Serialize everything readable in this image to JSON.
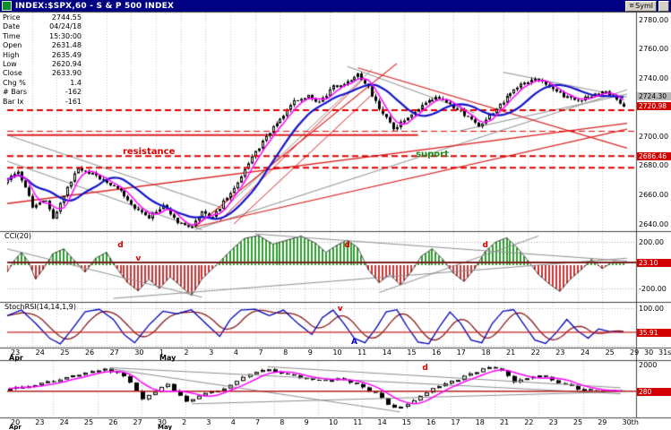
{
  "colors": {
    "titlebar_bg": "#000082",
    "up_candle": "#ffffff",
    "down_candle": "#000000",
    "ma_fast": "#ff00ff",
    "ma_slow": "#1414cc",
    "trend_gray": "#909090",
    "trend_red": "#dd2222",
    "dashed_red": "#e00000",
    "cci_pos": "#2f9e2f",
    "cci_neg": "#cc3333",
    "level_maroon": "#7b1f1f",
    "stoch_k": "#0000bb",
    "stoch_d": "#8b1a1a",
    "grid": "#c9c9c9",
    "badge_red": "#d40000",
    "badge_gray": "#b9b9b9",
    "resistance": "#dd0000",
    "support": "#1a8a1a"
  },
  "title_bar": {
    "title": "INDEX:$SPX,60 - S & P 500 INDEX",
    "symbol_button": "Syml"
  },
  "info_panel": {
    "rows": [
      [
        "Price",
        "2744.55"
      ],
      [
        "Date",
        "04/24/18"
      ],
      [
        "Time",
        "15:30:00"
      ],
      [
        "Open",
        "2631.48"
      ],
      [
        "High",
        "2635.49"
      ],
      [
        "Low",
        "2620.94"
      ],
      [
        "Close",
        "2633.90"
      ],
      [
        "Chg %",
        "1.4"
      ],
      [
        "# Bars",
        "-162"
      ],
      [
        "Bar Ix",
        "-161"
      ]
    ]
  },
  "chart_data": {
    "type": "candlestick",
    "title": "INDEX:$SPX,60 - S & P 500 INDEX",
    "main": {
      "bars": 175,
      "y_tick_labels": [
        "2780.00",
        "2760.00",
        "2740.00",
        "2720.00",
        "2700.00",
        "2680.00",
        "2660.00",
        "2640.00"
      ],
      "y_tick_values": [
        2780,
        2760,
        2740,
        2720,
        2700,
        2680,
        2660,
        2640
      ],
      "ylim": [
        2634,
        2784
      ],
      "price_anchors": [
        [
          0,
          2668
        ],
        [
          4,
          2676
        ],
        [
          8,
          2652
        ],
        [
          12,
          2656
        ],
        [
          14,
          2643
        ],
        [
          17,
          2660
        ],
        [
          21,
          2678
        ],
        [
          25,
          2674
        ],
        [
          29,
          2668
        ],
        [
          33,
          2662
        ],
        [
          37,
          2650
        ],
        [
          41,
          2645
        ],
        [
          45,
          2653
        ],
        [
          49,
          2641
        ],
        [
          53,
          2638
        ],
        [
          56,
          2648
        ],
        [
          59,
          2644
        ],
        [
          62,
          2655
        ],
        [
          66,
          2668
        ],
        [
          70,
          2686
        ],
        [
          74,
          2700
        ],
        [
          78,
          2712
        ],
        [
          82,
          2724
        ],
        [
          86,
          2728
        ],
        [
          89,
          2723
        ],
        [
          93,
          2734
        ],
        [
          97,
          2737
        ],
        [
          100,
          2742
        ],
        [
          103,
          2734
        ],
        [
          106,
          2718
        ],
        [
          110,
          2706
        ],
        [
          114,
          2712
        ],
        [
          118,
          2722
        ],
        [
          122,
          2727
        ],
        [
          126,
          2722
        ],
        [
          130,
          2715
        ],
        [
          134,
          2708
        ],
        [
          138,
          2716
        ],
        [
          142,
          2727
        ],
        [
          146,
          2736
        ],
        [
          150,
          2740
        ],
        [
          154,
          2734
        ],
        [
          158,
          2728
        ],
        [
          162,
          2724
        ],
        [
          166,
          2728
        ],
        [
          170,
          2731
        ],
        [
          173,
          2724
        ],
        [
          175,
          2721
        ]
      ],
      "trendlines_gray": [
        [
          0,
          2701,
          62,
          2650
        ],
        [
          0,
          2683,
          55,
          2636
        ],
        [
          53,
          2636,
          175,
          2732
        ],
        [
          62,
          2652,
          103,
          2746
        ],
        [
          96,
          2748,
          132,
          2716
        ],
        [
          128,
          2704,
          175,
          2729
        ],
        [
          140,
          2744,
          175,
          2727
        ]
      ],
      "trendlines_red": [
        [
          53,
          2638,
          110,
          2750,
          1.2
        ],
        [
          53,
          2638,
          175,
          2705,
          1.2
        ],
        [
          60,
          2642,
          100,
          2738,
          1
        ],
        [
          64,
          2640,
          104,
          2731,
          1
        ],
        [
          99,
          2747,
          175,
          2692,
          1.2
        ],
        [
          0,
          2654,
          175,
          2709,
          1.4
        ],
        [
          0,
          2701,
          116,
          2701,
          2
        ]
      ],
      "dashed_levels": [
        [
          2718,
          2
        ],
        [
          2703.5,
          1
        ],
        [
          2686.5,
          2
        ],
        [
          2678.5,
          2
        ]
      ],
      "annotations": [
        {
          "bar": 40,
          "price": 2689,
          "text": "resistance",
          "color": "#dd0000"
        },
        {
          "bar": 120,
          "price": 2687,
          "text": "suport",
          "color": "#1a8a1a"
        }
      ]
    },
    "cci": {
      "label": "CCI(20)",
      "y_tick_labels": [
        "200.00",
        "-200.00"
      ],
      "y_tick_values": [
        200,
        -200
      ],
      "level": 23.1,
      "anchors": [
        [
          0,
          -60
        ],
        [
          2,
          40
        ],
        [
          4,
          110
        ],
        [
          6,
          30
        ],
        [
          8,
          -120
        ],
        [
          10,
          -40
        ],
        [
          13,
          100
        ],
        [
          16,
          140
        ],
        [
          19,
          40
        ],
        [
          22,
          -60
        ],
        [
          25,
          60
        ],
        [
          28,
          110
        ],
        [
          31,
          -30
        ],
        [
          34,
          -150
        ],
        [
          37,
          -220
        ],
        [
          40,
          -120
        ],
        [
          43,
          -200
        ],
        [
          46,
          -100
        ],
        [
          49,
          -180
        ],
        [
          52,
          -260
        ],
        [
          55,
          -120
        ],
        [
          58,
          -30
        ],
        [
          61,
          60
        ],
        [
          64,
          150
        ],
        [
          67,
          230
        ],
        [
          71,
          255
        ],
        [
          75,
          180
        ],
        [
          79,
          215
        ],
        [
          83,
          250
        ],
        [
          87,
          190
        ],
        [
          90,
          110
        ],
        [
          93,
          170
        ],
        [
          96,
          215
        ],
        [
          99,
          150
        ],
        [
          102,
          -40
        ],
        [
          105,
          -150
        ],
        [
          108,
          -80
        ],
        [
          111,
          -170
        ],
        [
          114,
          -60
        ],
        [
          117,
          80
        ],
        [
          120,
          140
        ],
        [
          123,
          50
        ],
        [
          126,
          -70
        ],
        [
          129,
          -140
        ],
        [
          132,
          -30
        ],
        [
          135,
          120
        ],
        [
          138,
          200
        ],
        [
          141,
          235
        ],
        [
          144,
          150
        ],
        [
          147,
          40
        ],
        [
          150,
          -80
        ],
        [
          153,
          -160
        ],
        [
          156,
          -225
        ],
        [
          159,
          -120
        ],
        [
          162,
          -40
        ],
        [
          165,
          50
        ],
        [
          168,
          -30
        ],
        [
          171,
          30
        ],
        [
          175,
          23
        ]
      ],
      "trendlines_gray": [
        [
          0,
          140,
          55,
          -275
        ],
        [
          30,
          -285,
          175,
          60
        ],
        [
          70,
          268,
          175,
          35
        ],
        [
          105,
          -235,
          150,
          250
        ]
      ],
      "annotations": [
        {
          "bar": 32,
          "value": 165,
          "text": "d",
          "color": "#dd0000"
        },
        {
          "bar": 37,
          "value": 45,
          "text": "v",
          "color": "#dd0000"
        },
        {
          "bar": 96,
          "value": 165,
          "text": "d",
          "color": "#dd0000"
        },
        {
          "bar": 135,
          "value": 165,
          "text": "d",
          "color": "#dd0000"
        }
      ]
    },
    "stochrsi": {
      "label": "StochRSI(14,14,1,9)",
      "y_tick_labels": [
        "100.00"
      ],
      "y_tick_values": [
        100
      ],
      "level": 35.91,
      "anchors": [
        [
          0,
          80
        ],
        [
          4,
          95
        ],
        [
          8,
          60
        ],
        [
          12,
          20
        ],
        [
          15,
          5
        ],
        [
          18,
          40
        ],
        [
          22,
          90
        ],
        [
          26,
          97
        ],
        [
          30,
          70
        ],
        [
          33,
          30
        ],
        [
          36,
          8
        ],
        [
          40,
          55
        ],
        [
          44,
          92
        ],
        [
          48,
          85
        ],
        [
          52,
          96
        ],
        [
          56,
          60
        ],
        [
          60,
          25
        ],
        [
          63,
          70
        ],
        [
          66,
          95
        ],
        [
          70,
          97
        ],
        [
          74,
          80
        ],
        [
          78,
          95
        ],
        [
          82,
          60
        ],
        [
          86,
          30
        ],
        [
          89,
          75
        ],
        [
          92,
          95
        ],
        [
          95,
          60
        ],
        [
          98,
          20
        ],
        [
          101,
          8
        ],
        [
          104,
          45
        ],
        [
          107,
          90
        ],
        [
          110,
          96
        ],
        [
          113,
          50
        ],
        [
          116,
          10
        ],
        [
          119,
          5
        ],
        [
          122,
          50
        ],
        [
          125,
          90
        ],
        [
          128,
          60
        ],
        [
          131,
          15
        ],
        [
          134,
          8
        ],
        [
          137,
          60
        ],
        [
          140,
          92
        ],
        [
          143,
          96
        ],
        [
          146,
          55
        ],
        [
          149,
          15
        ],
        [
          152,
          6
        ],
        [
          155,
          35
        ],
        [
          158,
          70
        ],
        [
          161,
          40
        ],
        [
          164,
          20
        ],
        [
          167,
          45
        ],
        [
          170,
          38
        ],
        [
          175,
          36
        ]
      ],
      "annotations": [
        {
          "bar": 94,
          "value": 96,
          "text": "v",
          "color": "#dd0000"
        },
        {
          "bar": 98,
          "value": 8,
          "text": "A",
          "color": "#0000cc"
        }
      ]
    },
    "lower": {
      "bars": 98,
      "y_tick_labels": [
        "2000"
      ],
      "y_tick_values": [
        0.03
      ],
      "level": 0.55,
      "anchors": [
        [
          0,
          0.52
        ],
        [
          4,
          0.45
        ],
        [
          8,
          0.35
        ],
        [
          12,
          0.22
        ],
        [
          16,
          0.1
        ],
        [
          19,
          0.25
        ],
        [
          22,
          0.7
        ],
        [
          24,
          0.55
        ],
        [
          26,
          0.42
        ],
        [
          29,
          0.76
        ],
        [
          32,
          0.6
        ],
        [
          35,
          0.5
        ],
        [
          38,
          0.28
        ],
        [
          41,
          0.1
        ],
        [
          44,
          0.18
        ],
        [
          47,
          0.28
        ],
        [
          50,
          0.33
        ],
        [
          53,
          0.3
        ],
        [
          56,
          0.42
        ],
        [
          59,
          0.6
        ],
        [
          62,
          0.9
        ],
        [
          64,
          0.8
        ],
        [
          66,
          0.65
        ],
        [
          68,
          0.5
        ],
        [
          71,
          0.35
        ],
        [
          74,
          0.2
        ],
        [
          77,
          0.07
        ],
        [
          79,
          0.12
        ],
        [
          81,
          0.38
        ],
        [
          83,
          0.28
        ],
        [
          85,
          0.22
        ],
        [
          87,
          0.32
        ],
        [
          89,
          0.42
        ],
        [
          91,
          0.5
        ],
        [
          93,
          0.55
        ],
        [
          95,
          0.52
        ],
        [
          97,
          0.55
        ]
      ],
      "trendlines_gray": [
        [
          16,
          0.08,
          97,
          0.6
        ],
        [
          41,
          0.06,
          97,
          0.48
        ],
        [
          29,
          0.8,
          97,
          0.56
        ],
        [
          16,
          0.1,
          62,
          0.96
        ]
      ],
      "annotations": [
        {
          "bar": 66,
          "frac": 0.1,
          "text": "d",
          "color": "#dd0000"
        }
      ]
    },
    "badges": [
      {
        "panel": "main",
        "value": 2724.3,
        "text": "2724.30",
        "style": "gray",
        "dy": -10
      },
      {
        "panel": "main",
        "value": 2720.98,
        "text": "2720.98",
        "style": "red",
        "dy": -4
      },
      {
        "panel": "main",
        "value": 2686.46,
        "text": "2686.46",
        "style": "red",
        "dy": -4
      },
      {
        "panel": "cci",
        "value": 23.1,
        "text": "23.10",
        "style": "red",
        "dy": -4
      },
      {
        "panel": "stoch",
        "value": 35.91,
        "text": "35.91",
        "style": "red",
        "dy": -4
      },
      {
        "panel": "lower",
        "value": 0.55,
        "text": "280",
        "style": "red",
        "dy": -4
      }
    ],
    "x_axis": {
      "day_labels": [
        "23",
        "24",
        "25",
        "26",
        "27",
        "30",
        "1",
        "2",
        "3",
        "4",
        "7",
        "8",
        "9",
        "10",
        "11",
        "14",
        "15",
        "16",
        "17",
        "18",
        "21",
        "22",
        "23",
        "24",
        "25",
        "29",
        "30",
        "31st"
      ],
      "month_labels": [
        "Apr",
        "May"
      ]
    },
    "x_axis_lower": {
      "day_labels": [
        "20",
        "23",
        "24",
        "25",
        "26",
        "27",
        "30",
        "2",
        "3",
        "4",
        "7",
        "8",
        "9",
        "10",
        "11",
        "14",
        "15",
        "16",
        "17",
        "18",
        "21",
        "22",
        "23",
        "25",
        "29",
        "30th"
      ],
      "month_labels": [
        "Apr",
        "May"
      ]
    }
  }
}
